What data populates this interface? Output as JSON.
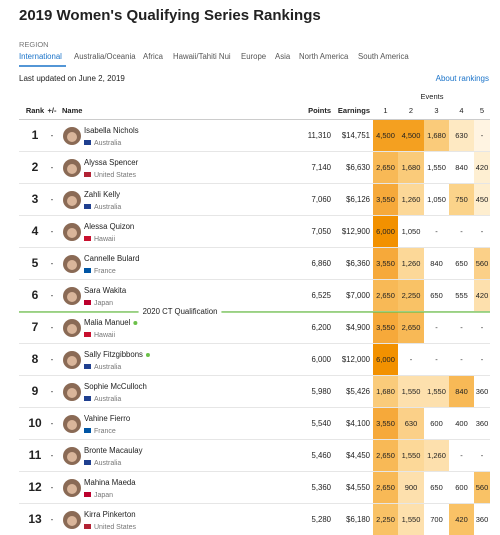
{
  "header": {
    "title": "2019 Women's Qualifying Series Rankings",
    "region_label": "REGION",
    "tabs": [
      "International",
      "Australia/Oceania",
      "Africa",
      "Hawaii/Tahiti Nui",
      "Europe",
      "Asia",
      "North America",
      "South America"
    ],
    "updated": "Last updated on June 2, 2019",
    "about": "About rankings"
  },
  "table": {
    "events_label": "Events",
    "columns": [
      "Rank",
      "+/-",
      "Name",
      "Points",
      "Earnings",
      "1",
      "2",
      "3",
      "4",
      "5"
    ],
    "separator": "2020 CT Qualification",
    "highlight_color": "#6cc04a",
    "rows": [
      {
        "rank": "1",
        "change": "-",
        "name": "Isabella Nichols",
        "country": "Australia",
        "flag_color": "#1f3f8f",
        "points": "11,310",
        "earnings": "$14,751",
        "events": [
          {
            "text": "4,500",
            "color": "#f4a020"
          },
          {
            "text": "4,500",
            "color": "#f4a020"
          },
          {
            "text": "1,680",
            "color": "#facb7a"
          },
          {
            "text": "630",
            "color": "#fee9c2"
          },
          {
            "text": "-",
            "color": "#fff4e2"
          }
        ]
      },
      {
        "rank": "2",
        "change": "-",
        "name": "Alyssa Spencer",
        "country": "United States",
        "flag_color": "#b22234",
        "points": "7,140",
        "earnings": "$6,630",
        "events": [
          {
            "text": "2,650",
            "color": "#f8b956"
          },
          {
            "text": "1,680",
            "color": "#facb7a"
          },
          {
            "text": "1,550",
            "color": "#ffffff"
          },
          {
            "text": "840",
            "color": "#ffffff"
          },
          {
            "text": "420",
            "color": "#feefd2"
          }
        ]
      },
      {
        "rank": "3",
        "change": "-",
        "name": "Zahli Kelly",
        "country": "Australia",
        "flag_color": "#1f3f8f",
        "points": "7,060",
        "earnings": "$6,126",
        "events": [
          {
            "text": "3,550",
            "color": "#f6a93a"
          },
          {
            "text": "1,260",
            "color": "#fcd898"
          },
          {
            "text": "1,050",
            "color": "#ffffff"
          },
          {
            "text": "750",
            "color": "#fbd38a"
          },
          {
            "text": "450",
            "color": "#feeecf"
          }
        ]
      },
      {
        "rank": "4",
        "change": "-",
        "name": "Alessa Quizon",
        "country": "Hawaii",
        "flag_color": "#c8102e",
        "points": "7,050",
        "earnings": "$12,900",
        "events": [
          {
            "text": "6,000",
            "color": "#f29100"
          },
          {
            "text": "1,050",
            "color": "#ffffff"
          },
          {
            "text": "-",
            "color": "#ffffff"
          },
          {
            "text": "-",
            "color": "#ffffff"
          },
          {
            "text": "-",
            "color": "#ffffff"
          }
        ]
      },
      {
        "rank": "5",
        "change": "-",
        "name": "Cannelle Bulard",
        "country": "France",
        "flag_color": "#0055a4",
        "points": "6,860",
        "earnings": "$6,360",
        "events": [
          {
            "text": "3,550",
            "color": "#f6a93a"
          },
          {
            "text": "1,260",
            "color": "#fcd898"
          },
          {
            "text": "840",
            "color": "#ffffff"
          },
          {
            "text": "650",
            "color": "#ffffff"
          },
          {
            "text": "560",
            "color": "#fbd088"
          }
        ]
      },
      {
        "rank": "6",
        "change": "-",
        "name": "Sara Wakita",
        "country": "Japan",
        "flag_color": "#bc002d",
        "points": "6,525",
        "earnings": "$7,000",
        "events": [
          {
            "text": "2,650",
            "color": "#f8b956"
          },
          {
            "text": "2,250",
            "color": "#f9c266"
          },
          {
            "text": "650",
            "color": "#ffffff"
          },
          {
            "text": "555",
            "color": "#ffffff"
          },
          {
            "text": "420",
            "color": "#fde0ad"
          }
        ]
      },
      {
        "rank": "7",
        "change": "-",
        "name": "Malia Manuel",
        "country": "Hawaii",
        "flag_color": "#c8102e",
        "dot_color": "#6cc04a",
        "points": "6,200",
        "earnings": "$4,900",
        "events": [
          {
            "text": "3,550",
            "color": "#f6a93a"
          },
          {
            "text": "2,650",
            "color": "#f8b956"
          },
          {
            "text": "-",
            "color": "#ffffff"
          },
          {
            "text": "-",
            "color": "#ffffff"
          },
          {
            "text": "-",
            "color": "#ffffff"
          }
        ]
      },
      {
        "rank": "8",
        "change": "-",
        "name": "Sally Fitzgibbons",
        "country": "Australia",
        "flag_color": "#1f3f8f",
        "dot_color": "#6cc04a",
        "points": "6,000",
        "earnings": "$12,000",
        "events": [
          {
            "text": "6,000",
            "color": "#f29100"
          },
          {
            "text": "-",
            "color": "#ffffff"
          },
          {
            "text": "-",
            "color": "#ffffff"
          },
          {
            "text": "-",
            "color": "#ffffff"
          },
          {
            "text": "-",
            "color": "#ffffff"
          }
        ]
      },
      {
        "rank": "9",
        "change": "-",
        "name": "Sophie McCulloch",
        "country": "Australia",
        "flag_color": "#1f3f8f",
        "points": "5,980",
        "earnings": "$5,426",
        "events": [
          {
            "text": "1,680",
            "color": "#facb7a"
          },
          {
            "text": "1,550",
            "color": "#fde0ad"
          },
          {
            "text": "1,550",
            "color": "#fde0ad"
          },
          {
            "text": "840",
            "color": "#f8b956"
          },
          {
            "text": "360",
            "color": "#ffffff"
          }
        ]
      },
      {
        "rank": "10",
        "change": "-",
        "name": "Vahine Fierro",
        "country": "France",
        "flag_color": "#0055a4",
        "points": "5,540",
        "earnings": "$4,100",
        "events": [
          {
            "text": "3,550",
            "color": "#f6a93a"
          },
          {
            "text": "630",
            "color": "#fbd088"
          },
          {
            "text": "600",
            "color": "#ffffff"
          },
          {
            "text": "400",
            "color": "#ffffff"
          },
          {
            "text": "360",
            "color": "#ffffff"
          }
        ]
      },
      {
        "rank": "11",
        "change": "-",
        "name": "Bronte Macaulay",
        "country": "Australia",
        "flag_color": "#1f3f8f",
        "points": "5,460",
        "earnings": "$4,450",
        "events": [
          {
            "text": "2,650",
            "color": "#f8b956"
          },
          {
            "text": "1,550",
            "color": "#fcd898"
          },
          {
            "text": "1,260",
            "color": "#fde0ad"
          },
          {
            "text": "-",
            "color": "#ffffff"
          },
          {
            "text": "-",
            "color": "#ffffff"
          }
        ]
      },
      {
        "rank": "12",
        "change": "-",
        "name": "Mahina Maeda",
        "country": "Japan",
        "flag_color": "#bc002d",
        "points": "5,360",
        "earnings": "$4,550",
        "events": [
          {
            "text": "2,650",
            "color": "#f8b956"
          },
          {
            "text": "900",
            "color": "#fde0ad"
          },
          {
            "text": "650",
            "color": "#ffffff"
          },
          {
            "text": "600",
            "color": "#ffffff"
          },
          {
            "text": "560",
            "color": "#f9c266"
          }
        ]
      },
      {
        "rank": "13",
        "change": "-",
        "name": "Kirra Pinkerton",
        "country": "United States",
        "flag_color": "#b22234",
        "points": "5,280",
        "earnings": "$6,180",
        "events": [
          {
            "text": "2,250",
            "color": "#f9c266"
          },
          {
            "text": "1,550",
            "color": "#fde0ad"
          },
          {
            "text": "700",
            "color": "#ffffff"
          },
          {
            "text": "420",
            "color": "#f9c266"
          },
          {
            "text": "360",
            "color": "#ffffff"
          }
        ]
      }
    ]
  }
}
